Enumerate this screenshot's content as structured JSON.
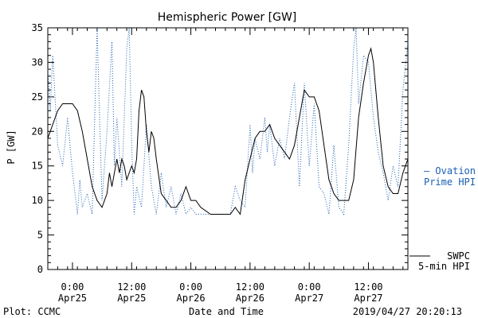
{
  "chart_data": {
    "type": "line",
    "title": "Hemispheric Power [GW]",
    "ylabel": "P [GW]",
    "xlabel": "Date and Time",
    "ylim": [
      0,
      35
    ],
    "yticks": [
      0,
      5,
      10,
      15,
      20,
      25,
      30,
      35
    ],
    "xlim": [
      "2019-04-24 19:00",
      "2019-04-27 20:00"
    ],
    "xticks": [
      {
        "time": "2019-04-25 00:00",
        "top": "0:00",
        "bottom": "Apr25"
      },
      {
        "time": "2019-04-25 12:00",
        "top": "12:00",
        "bottom": "Apr25"
      },
      {
        "time": "2019-04-26 00:00",
        "top": "0:00",
        "bottom": "Apr26"
      },
      {
        "time": "2019-04-26 12:00",
        "top": "12:00",
        "bottom": "Apr26"
      },
      {
        "time": "2019-04-27 00:00",
        "top": "0:00",
        "bottom": "Apr27"
      },
      {
        "time": "2019-04-27 12:00",
        "top": "12:00",
        "bottom": "Apr27"
      }
    ],
    "series": [
      {
        "name": "SWPC 5-min HPI",
        "label_lines": [
          "SWPC",
          "5-min HPI"
        ],
        "color": "#000000",
        "style": "solid",
        "points": [
          [
            "2019-04-24 19:00",
            19
          ],
          [
            "2019-04-24 20:00",
            21
          ],
          [
            "2019-04-24 21:00",
            23
          ],
          [
            "2019-04-24 22:00",
            24
          ],
          [
            "2019-04-24 23:00",
            24
          ],
          [
            "2019-04-25 00:00",
            24
          ],
          [
            "2019-04-25 01:00",
            23
          ],
          [
            "2019-04-25 02:00",
            20
          ],
          [
            "2019-04-25 03:00",
            16
          ],
          [
            "2019-04-25 04:00",
            12
          ],
          [
            "2019-04-25 05:00",
            10
          ],
          [
            "2019-04-25 06:00",
            9
          ],
          [
            "2019-04-25 07:00",
            11
          ],
          [
            "2019-04-25 07:30",
            14
          ],
          [
            "2019-04-25 08:00",
            12
          ],
          [
            "2019-04-25 09:00",
            16
          ],
          [
            "2019-04-25 09:30",
            14
          ],
          [
            "2019-04-25 10:00",
            16
          ],
          [
            "2019-04-25 10:30",
            15
          ],
          [
            "2019-04-25 11:00",
            13
          ],
          [
            "2019-04-25 12:00",
            15
          ],
          [
            "2019-04-25 12:30",
            14
          ],
          [
            "2019-04-25 13:00",
            16
          ],
          [
            "2019-04-25 13:30",
            23
          ],
          [
            "2019-04-25 14:00",
            26
          ],
          [
            "2019-04-25 14:30",
            25
          ],
          [
            "2019-04-25 15:00",
            20
          ],
          [
            "2019-04-25 15:30",
            17
          ],
          [
            "2019-04-25 16:00",
            20
          ],
          [
            "2019-04-25 16:30",
            19
          ],
          [
            "2019-04-25 17:00",
            16
          ],
          [
            "2019-04-25 18:00",
            11
          ],
          [
            "2019-04-25 19:00",
            10
          ],
          [
            "2019-04-25 20:00",
            9
          ],
          [
            "2019-04-25 21:00",
            9
          ],
          [
            "2019-04-25 22:00",
            10
          ],
          [
            "2019-04-25 23:00",
            12
          ],
          [
            "2019-04-26 00:00",
            10
          ],
          [
            "2019-04-26 01:00",
            10
          ],
          [
            "2019-04-26 02:00",
            9
          ],
          [
            "2019-04-26 04:00",
            8
          ],
          [
            "2019-04-26 06:00",
            8
          ],
          [
            "2019-04-26 08:00",
            8
          ],
          [
            "2019-04-26 09:00",
            9
          ],
          [
            "2019-04-26 10:00",
            8
          ],
          [
            "2019-04-26 11:00",
            13
          ],
          [
            "2019-04-26 12:00",
            16
          ],
          [
            "2019-04-26 13:00",
            19
          ],
          [
            "2019-04-26 14:00",
            20
          ],
          [
            "2019-04-26 15:00",
            20
          ],
          [
            "2019-04-26 16:00",
            21
          ],
          [
            "2019-04-26 17:00",
            19
          ],
          [
            "2019-04-26 18:00",
            18
          ],
          [
            "2019-04-26 19:00",
            17
          ],
          [
            "2019-04-26 20:00",
            16
          ],
          [
            "2019-04-26 21:00",
            18
          ],
          [
            "2019-04-26 22:00",
            22
          ],
          [
            "2019-04-26 23:00",
            26
          ],
          [
            "2019-04-27 00:00",
            25
          ],
          [
            "2019-04-27 01:00",
            25
          ],
          [
            "2019-04-27 02:00",
            23
          ],
          [
            "2019-04-27 03:00",
            18
          ],
          [
            "2019-04-27 04:00",
            13
          ],
          [
            "2019-04-27 05:00",
            11
          ],
          [
            "2019-04-27 06:00",
            10
          ],
          [
            "2019-04-27 07:00",
            10
          ],
          [
            "2019-04-27 08:00",
            10
          ],
          [
            "2019-04-27 09:00",
            13
          ],
          [
            "2019-04-27 10:00",
            22
          ],
          [
            "2019-04-27 11:00",
            27
          ],
          [
            "2019-04-27 12:00",
            31
          ],
          [
            "2019-04-27 12:30",
            32
          ],
          [
            "2019-04-27 13:00",
            30
          ],
          [
            "2019-04-27 14:00",
            22
          ],
          [
            "2019-04-27 15:00",
            15
          ],
          [
            "2019-04-27 16:00",
            12
          ],
          [
            "2019-04-27 17:00",
            11
          ],
          [
            "2019-04-27 18:00",
            11
          ],
          [
            "2019-04-27 19:00",
            14
          ],
          [
            "2019-04-27 20:00",
            16
          ]
        ]
      },
      {
        "name": "Ovation Prime HPI",
        "label_lines": [
          "— Ovation",
          "Prime HPI"
        ],
        "color": "#1a5fb4",
        "style": "dotted",
        "points": [
          [
            "2019-04-24 19:00",
            29
          ],
          [
            "2019-04-24 19:30",
            23
          ],
          [
            "2019-04-24 20:00",
            31
          ],
          [
            "2019-04-24 21:00",
            18
          ],
          [
            "2019-04-24 22:00",
            15
          ],
          [
            "2019-04-24 23:00",
            22
          ],
          [
            "2019-04-25 00:00",
            14
          ],
          [
            "2019-04-25 01:00",
            8
          ],
          [
            "2019-04-25 01:30",
            13
          ],
          [
            "2019-04-25 02:00",
            9
          ],
          [
            "2019-04-25 03:00",
            11
          ],
          [
            "2019-04-25 04:00",
            8
          ],
          [
            "2019-04-25 05:00",
            35
          ],
          [
            "2019-04-25 05:30",
            22
          ],
          [
            "2019-04-25 06:00",
            10
          ],
          [
            "2019-04-25 07:00",
            20
          ],
          [
            "2019-04-25 08:00",
            33
          ],
          [
            "2019-04-25 08:30",
            15
          ],
          [
            "2019-04-25 09:00",
            22
          ],
          [
            "2019-04-25 10:00",
            12
          ],
          [
            "2019-04-25 11:00",
            32
          ],
          [
            "2019-04-25 11:30",
            35
          ],
          [
            "2019-04-25 12:00",
            18
          ],
          [
            "2019-04-25 12:30",
            8
          ],
          [
            "2019-04-25 13:00",
            12
          ],
          [
            "2019-04-25 14:00",
            9
          ],
          [
            "2019-04-25 15:00",
            21
          ],
          [
            "2019-04-25 16:00",
            12
          ],
          [
            "2019-04-25 17:00",
            8
          ],
          [
            "2019-04-25 18:00",
            14
          ],
          [
            "2019-04-25 19:00",
            9
          ],
          [
            "2019-04-25 20:00",
            12
          ],
          [
            "2019-04-25 21:00",
            8
          ],
          [
            "2019-04-25 22:00",
            11
          ],
          [
            "2019-04-25 23:00",
            8
          ],
          [
            "2019-04-26 00:00",
            9
          ],
          [
            "2019-04-26 01:00",
            8
          ],
          [
            "2019-04-26 08:00",
            8
          ],
          [
            "2019-04-26 09:00",
            12
          ],
          [
            "2019-04-26 10:00",
            10
          ],
          [
            "2019-04-26 11:00",
            9
          ],
          [
            "2019-04-26 12:00",
            21
          ],
          [
            "2019-04-26 12:30",
            14
          ],
          [
            "2019-04-26 13:00",
            19
          ],
          [
            "2019-04-26 14:00",
            16
          ],
          [
            "2019-04-26 15:00",
            22
          ],
          [
            "2019-04-26 15:30",
            17
          ],
          [
            "2019-04-26 16:00",
            21
          ],
          [
            "2019-04-26 17:00",
            15
          ],
          [
            "2019-04-26 18:00",
            19
          ],
          [
            "2019-04-26 19:00",
            16
          ],
          [
            "2019-04-26 20:00",
            22
          ],
          [
            "2019-04-26 21:00",
            27
          ],
          [
            "2019-04-26 22:00",
            12
          ],
          [
            "2019-04-26 23:00",
            27
          ],
          [
            "2019-04-27 00:00",
            15
          ],
          [
            "2019-04-27 01:00",
            24
          ],
          [
            "2019-04-27 02:00",
            12
          ],
          [
            "2019-04-27 03:00",
            11
          ],
          [
            "2019-04-27 04:00",
            8
          ],
          [
            "2019-04-27 05:00",
            18
          ],
          [
            "2019-04-27 06:00",
            9
          ],
          [
            "2019-04-27 07:00",
            8
          ],
          [
            "2019-04-27 08:00",
            18
          ],
          [
            "2019-04-27 09:00",
            32
          ],
          [
            "2019-04-27 09:30",
            35
          ],
          [
            "2019-04-27 10:00",
            24
          ],
          [
            "2019-04-27 11:00",
            31
          ],
          [
            "2019-04-27 12:00",
            30
          ],
          [
            "2019-04-27 13:00",
            22
          ],
          [
            "2019-04-27 14:00",
            17
          ],
          [
            "2019-04-27 15:00",
            14
          ],
          [
            "2019-04-27 16:00",
            10
          ],
          [
            "2019-04-27 17:00",
            15
          ],
          [
            "2019-04-27 18:00",
            12
          ],
          [
            "2019-04-27 19:00",
            26
          ],
          [
            "2019-04-27 20:00",
            33
          ]
        ]
      }
    ],
    "grid": false,
    "legend": "right"
  },
  "footer": {
    "plot_label": "Plot: CCMC",
    "timestamp": "2019/04/27 20:20:13"
  }
}
